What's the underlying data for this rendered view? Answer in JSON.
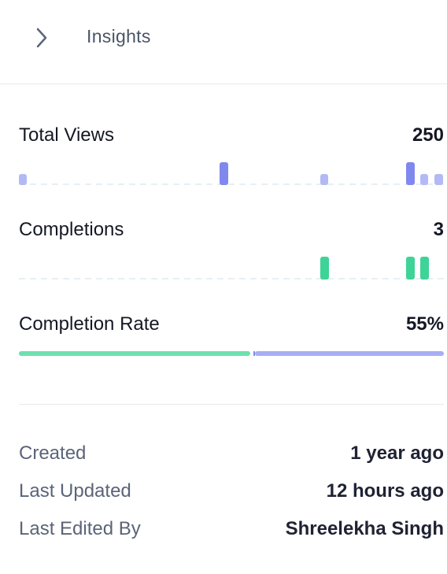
{
  "header": {
    "title": "Insights",
    "toggle_icon": "chevron-right-icon"
  },
  "metrics": [
    {
      "label": "Total Views",
      "value": "250"
    },
    {
      "label": "Completions",
      "value": "3"
    },
    {
      "label": "Completion Rate",
      "value": "55%"
    }
  ],
  "completion_rate_fraction": 0.55,
  "colors": {
    "views": "#8088ee",
    "views_light": "#b3b9f5",
    "completions": "#3ed397",
    "rate_done": "#6ee0ae",
    "rate_rest": "#a7aef3",
    "baseline": "#e6f0f4"
  },
  "meta": [
    {
      "label": "Created",
      "value": "1 year ago"
    },
    {
      "label": "Last Updated",
      "value": "12 hours ago"
    },
    {
      "label": "Last Edited By",
      "value": "Shreelekha Singh"
    }
  ]
}
